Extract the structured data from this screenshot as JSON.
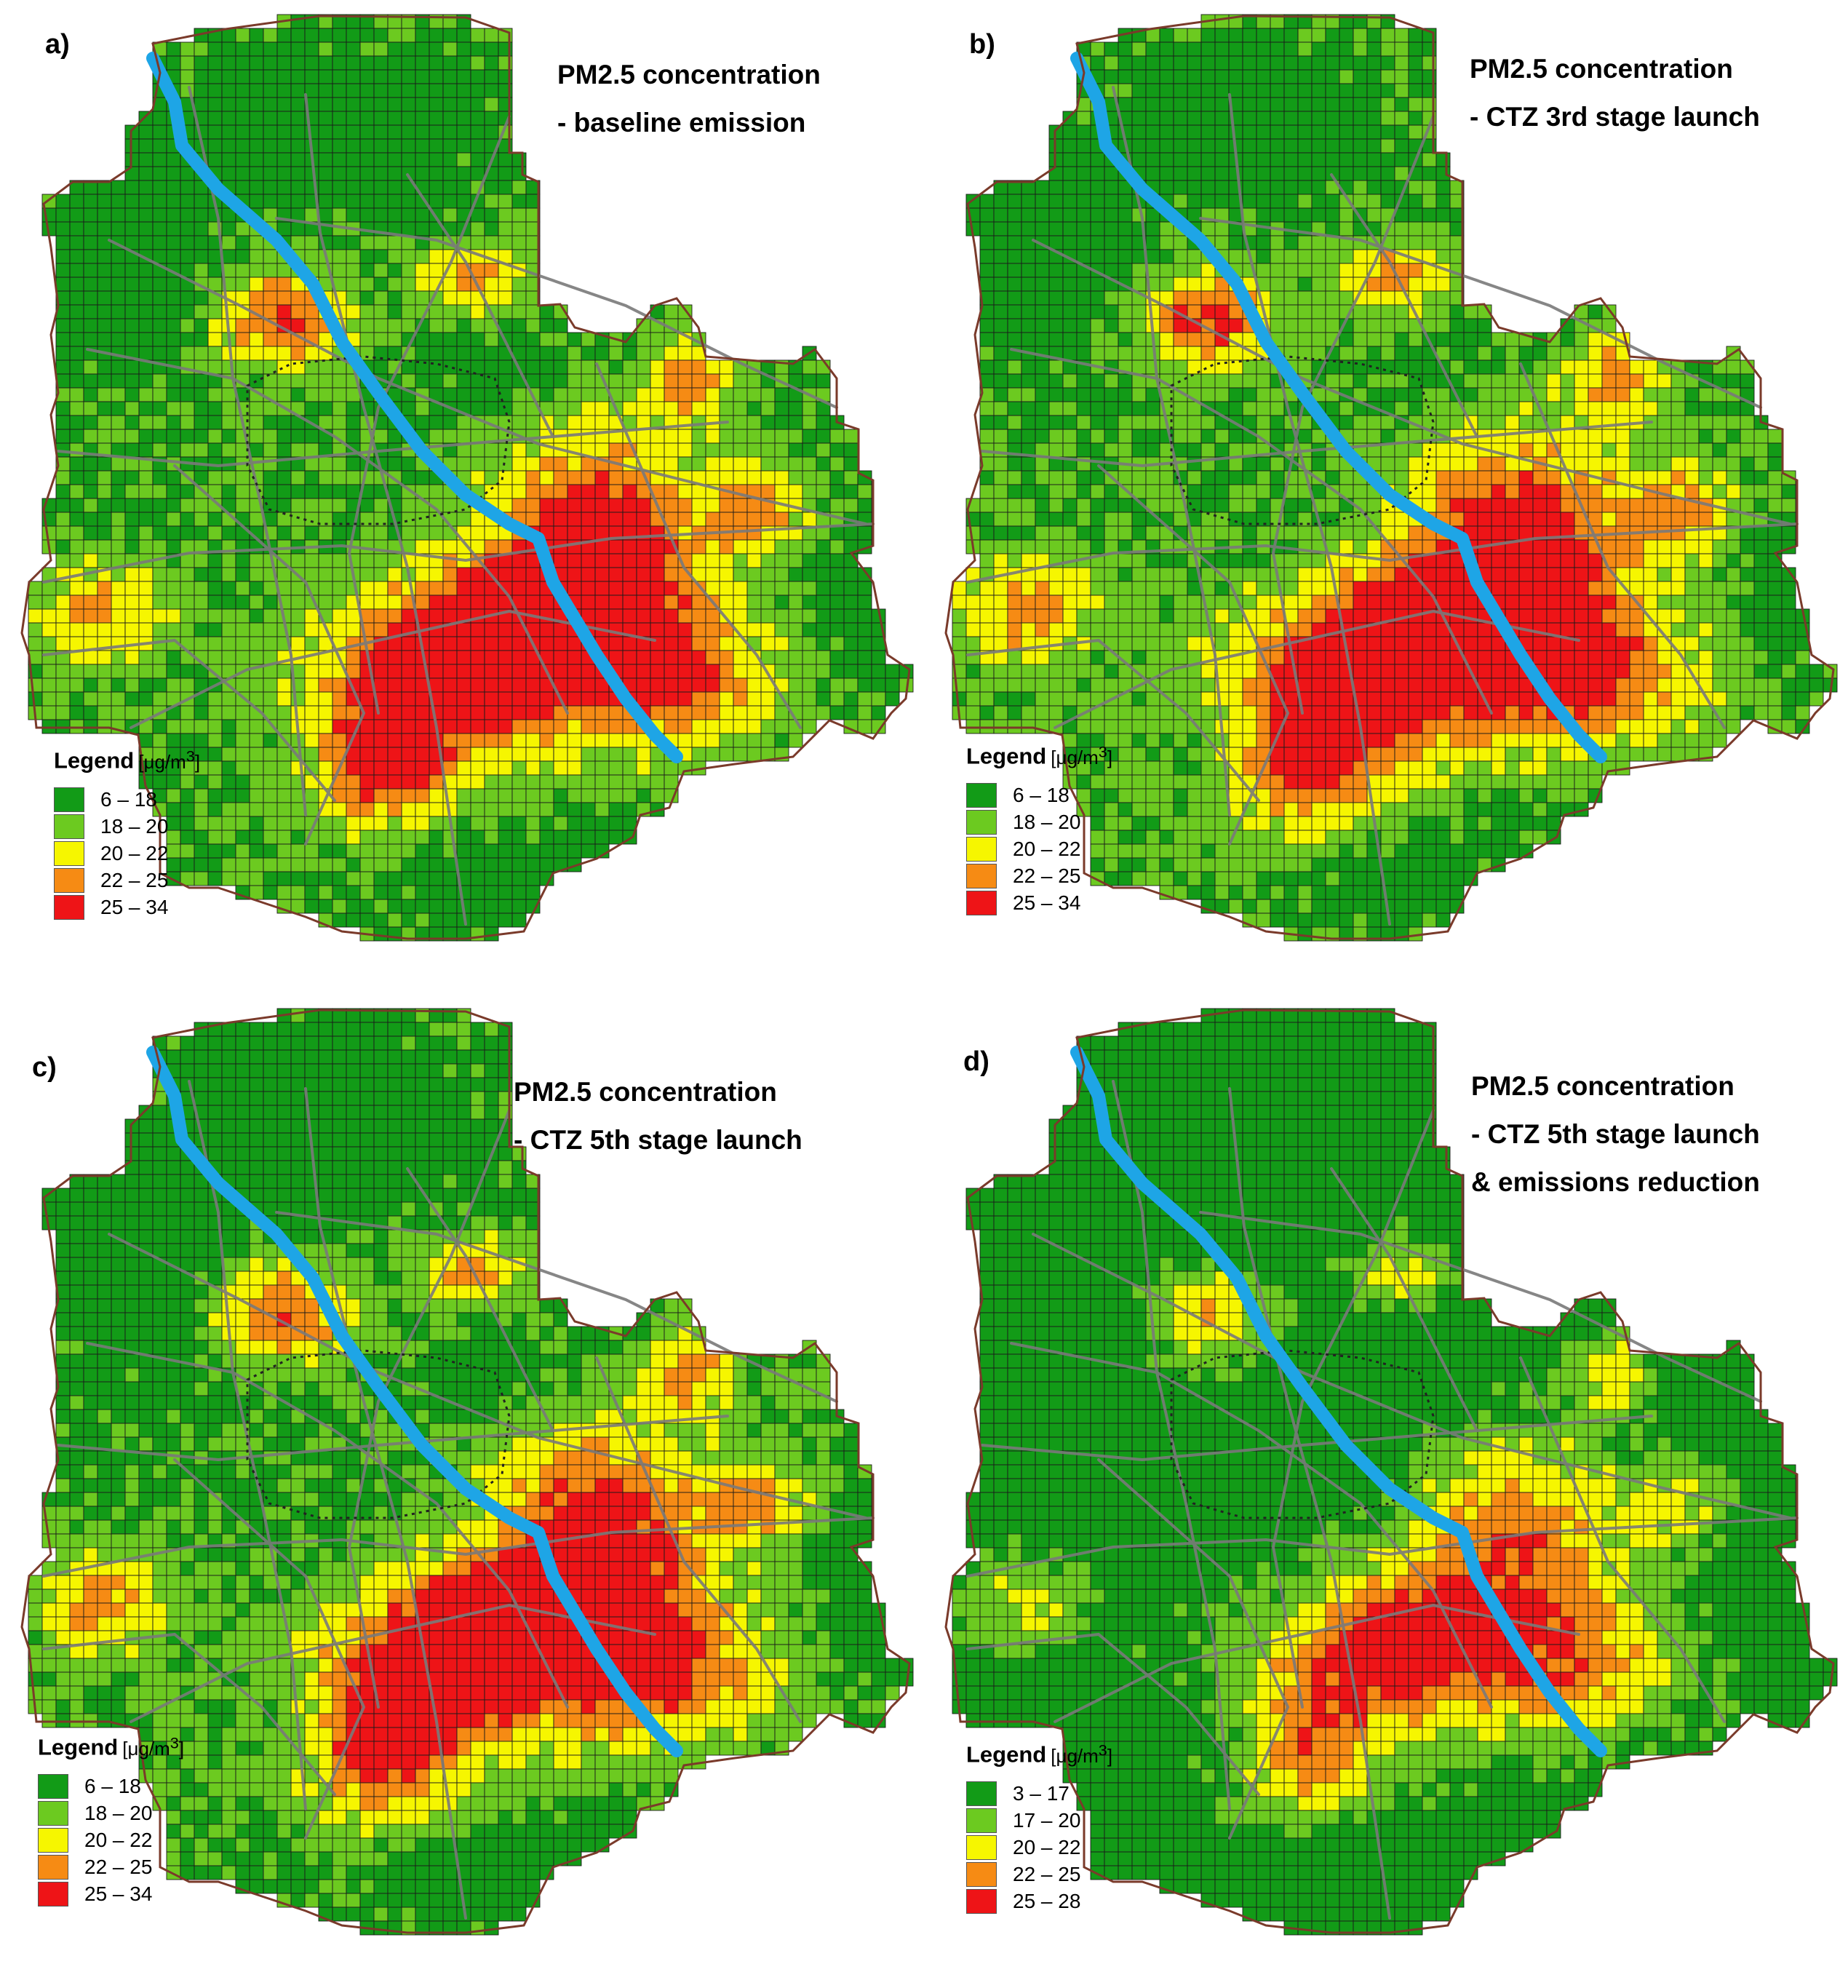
{
  "figure": {
    "unit_prefix": "[μg/m",
    "unit_sup": "3",
    "unit_suffix": "]",
    "legend_title": "Legend"
  },
  "colors": {
    "class_1": "#129b17",
    "class_2": "#6cca20",
    "class_3": "#f6f600",
    "class_4": "#f68b14",
    "class_5": "#ee1417",
    "river": "#1ea5e6",
    "roads": "#7a7a7a",
    "boundary": "#7a3a2a",
    "grid": "#1a1a1a"
  },
  "panels": [
    {
      "letter": "a)",
      "title": [
        "PM2.5 concentration",
        "- baseline emission"
      ],
      "legend": [
        "6 – 18",
        "18 – 20",
        "20 – 22",
        "22 – 25",
        "25 – 34"
      ]
    },
    {
      "letter": "b)",
      "title": [
        "PM2.5 concentration",
        "- CTZ 3rd stage launch"
      ],
      "legend": [
        "6 – 18",
        "18 – 20",
        "20 – 22",
        "22 – 25",
        "25 – 34"
      ]
    },
    {
      "letter": "c)",
      "title": [
        "PM2.5 concentration",
        "- CTZ  5th stage launch"
      ],
      "legend": [
        "6 – 18",
        "18 – 20",
        "20 – 22",
        "22 – 25",
        "25 – 34"
      ]
    },
    {
      "letter": "d)",
      "title": [
        "PM2.5 concentration",
        "- CTZ  5th stage launch",
        "& emissions reduction"
      ],
      "legend": [
        "3 – 17",
        "17 – 20",
        "20 – 22",
        "22 – 25",
        "25 – 28"
      ]
    }
  ]
}
